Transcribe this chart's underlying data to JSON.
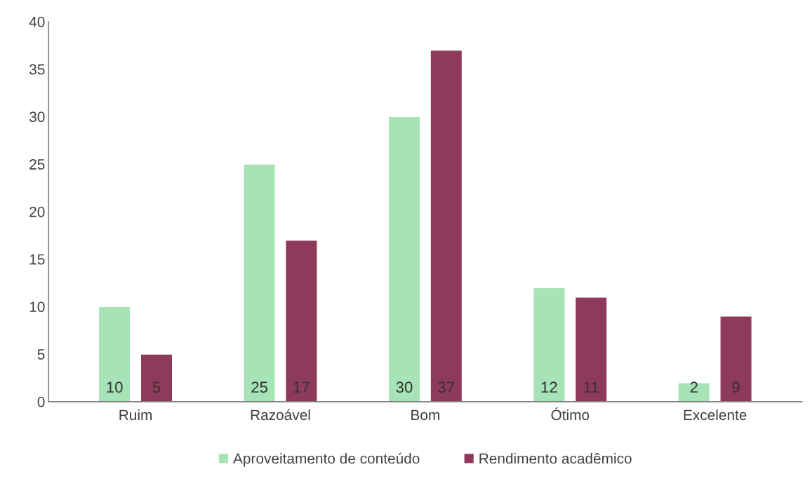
{
  "chart_data": {
    "type": "bar",
    "categories": [
      "Ruim",
      "Razoável",
      "Bom",
      "Ótimo",
      "Excelente"
    ],
    "series": [
      {
        "name": "Aproveitamento de conteúdo",
        "color": "#a6e3b7",
        "values": [
          10,
          25,
          30,
          12,
          2
        ]
      },
      {
        "name": "Rendimento acadêmico",
        "color": "#8e3a5a",
        "values": [
          5,
          17,
          37,
          11,
          9
        ]
      }
    ],
    "ylim": [
      0,
      40
    ],
    "yticks": [
      0,
      5,
      10,
      15,
      20,
      25,
      30,
      35,
      40
    ],
    "data_labels": true,
    "grid": false,
    "legend": "bottom"
  }
}
